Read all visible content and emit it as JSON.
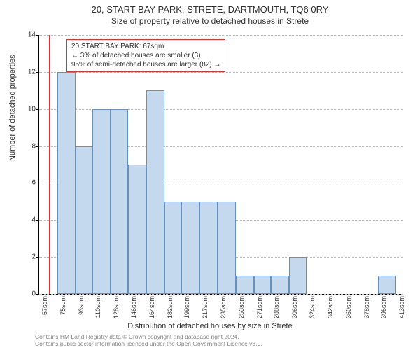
{
  "title": "20, START BAY PARK, STRETE, DARTMOUTH, TQ6 0RY",
  "subtitle": "Size of property relative to detached houses in Strete",
  "ylabel": "Number of detached properties",
  "xlabel": "Distribution of detached houses by size in Strete",
  "chart": {
    "type": "histogram",
    "ylim": [
      0,
      14
    ],
    "ytick_step": 2,
    "bar_fill": "#c4d8ee",
    "bar_border": "#6691bf",
    "grid_color": "#bbbbbb",
    "background": "#ffffff",
    "refline_color": "#e03030",
    "refline_x": 67,
    "x_min": 57,
    "x_max": 420,
    "xtick_labels": [
      "57sqm",
      "75sqm",
      "93sqm",
      "110sqm",
      "128sqm",
      "146sqm",
      "164sqm",
      "182sqm",
      "199sqm",
      "217sqm",
      "235sqm",
      "253sqm",
      "271sqm",
      "288sqm",
      "306sqm",
      "324sqm",
      "342sqm",
      "360sqm",
      "378sqm",
      "395sqm",
      "413sqm"
    ],
    "xtick_positions": [
      57,
      75,
      93,
      110,
      128,
      146,
      164,
      182,
      199,
      217,
      235,
      253,
      271,
      288,
      306,
      324,
      342,
      360,
      378,
      395,
      413
    ],
    "bars": [
      {
        "x0": 57,
        "x1": 75,
        "y": 0
      },
      {
        "x0": 75,
        "x1": 93,
        "y": 12
      },
      {
        "x0": 93,
        "x1": 110,
        "y": 8
      },
      {
        "x0": 110,
        "x1": 128,
        "y": 10
      },
      {
        "x0": 128,
        "x1": 146,
        "y": 10
      },
      {
        "x0": 146,
        "x1": 164,
        "y": 7
      },
      {
        "x0": 164,
        "x1": 182,
        "y": 11
      },
      {
        "x0": 182,
        "x1": 199,
        "y": 5
      },
      {
        "x0": 199,
        "x1": 217,
        "y": 5
      },
      {
        "x0": 217,
        "x1": 235,
        "y": 5
      },
      {
        "x0": 235,
        "x1": 253,
        "y": 5
      },
      {
        "x0": 253,
        "x1": 271,
        "y": 1
      },
      {
        "x0": 271,
        "x1": 288,
        "y": 1
      },
      {
        "x0": 288,
        "x1": 306,
        "y": 1
      },
      {
        "x0": 306,
        "x1": 324,
        "y": 2
      },
      {
        "x0": 324,
        "x1": 342,
        "y": 0
      },
      {
        "x0": 342,
        "x1": 360,
        "y": 0
      },
      {
        "x0": 360,
        "x1": 378,
        "y": 0
      },
      {
        "x0": 378,
        "x1": 395,
        "y": 0
      },
      {
        "x0": 395,
        "x1": 413,
        "y": 1
      }
    ]
  },
  "annotation": {
    "line1": "20 START BAY PARK: 67sqm",
    "line2": "← 3% of detached houses are smaller (3)",
    "line3": "95% of semi-detached houses are larger (82) →"
  },
  "footer": {
    "line1": "Contains HM Land Registry data © Crown copyright and database right 2024.",
    "line2": "Contains public sector information licensed under the Open Government Licence v3.0."
  }
}
